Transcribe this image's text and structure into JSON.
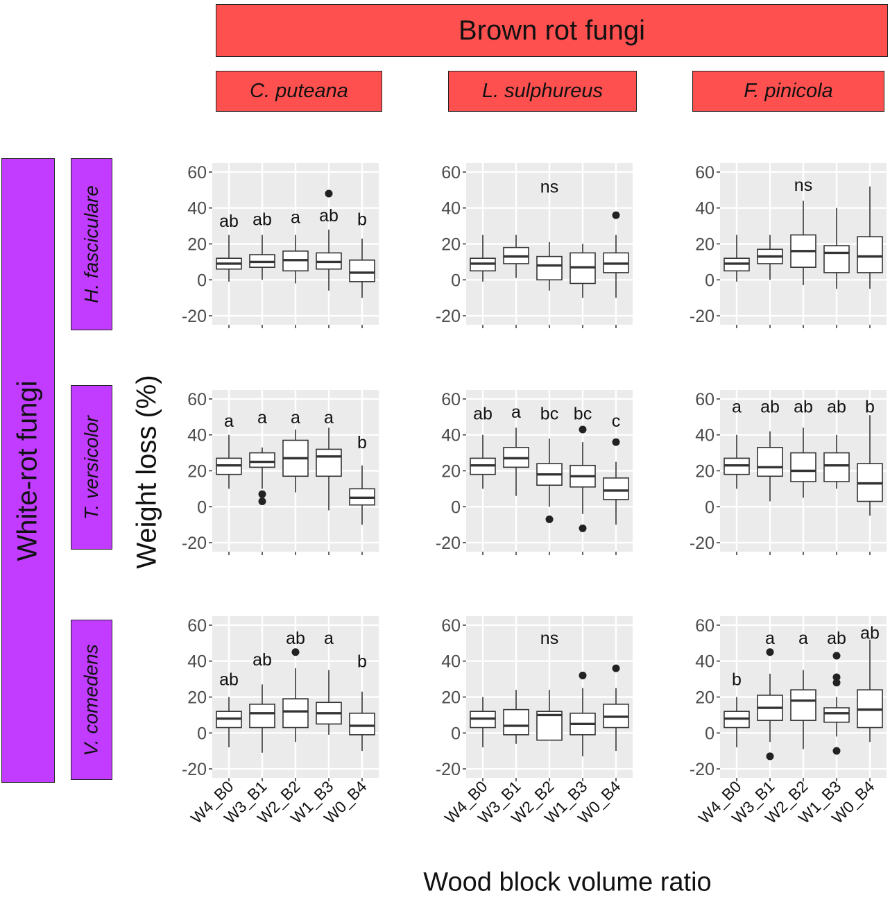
{
  "colors": {
    "brown_strip": "#ff5050",
    "white_strip": "#c13cff",
    "panel_bg": "#ebebeb",
    "grid": "#ffffff",
    "box_line": "#333333",
    "outlier": "#222222"
  },
  "strips": {
    "top_title": "Brown rot fungi",
    "columns": [
      "C. puteana",
      "L. sulphureus",
      "F. pinicola"
    ],
    "left_title": "White-rot fungi",
    "rows": [
      "H. fasciculare",
      "T. versicolor",
      "V. comedens"
    ]
  },
  "axis": {
    "ylabel": "Weight loss (%)",
    "xlabel": "Wood block volume ratio"
  },
  "chart_data": {
    "type": "boxplot",
    "layout": "3x3 facet grid",
    "categories": [
      "W4_B0",
      "W3_B1",
      "W2_B2",
      "W1_B3",
      "W0_B4"
    ],
    "y_ticks": [
      -20,
      0,
      20,
      40,
      60
    ],
    "ylim": [
      -25,
      65
    ],
    "grid": true,
    "panels": [
      {
        "row": "H. fasciculare",
        "col": "C. puteana",
        "boxes": [
          {
            "lo": -1,
            "q1": 6,
            "med": 9,
            "q3": 12,
            "hi": 25,
            "out": []
          },
          {
            "lo": 0,
            "q1": 7,
            "med": 10,
            "q3": 14,
            "hi": 25,
            "out": []
          },
          {
            "lo": -2,
            "q1": 5,
            "med": 11,
            "q3": 16,
            "hi": 25,
            "out": []
          },
          {
            "lo": -6,
            "q1": 6,
            "med": 10,
            "q3": 15,
            "hi": 28,
            "out": [
              48
            ]
          },
          {
            "lo": -10,
            "q1": -1,
            "med": 4,
            "q3": 11,
            "hi": 23,
            "out": []
          }
        ],
        "letters": [
          "ab",
          "ab",
          "a",
          "ab",
          "b"
        ],
        "letter_y": [
          33,
          34,
          35,
          36,
          34
        ]
      },
      {
        "row": "H. fasciculare",
        "col": "L. sulphureus",
        "boxes": [
          {
            "lo": -1,
            "q1": 5,
            "med": 9,
            "q3": 12,
            "hi": 25,
            "out": []
          },
          {
            "lo": 1,
            "q1": 9,
            "med": 13,
            "q3": 18,
            "hi": 25,
            "out": []
          },
          {
            "lo": -6,
            "q1": 0,
            "med": 8,
            "q3": 13,
            "hi": 21,
            "out": []
          },
          {
            "lo": -10,
            "q1": -2,
            "med": 7,
            "q3": 15,
            "hi": 20,
            "out": []
          },
          {
            "lo": -10,
            "q1": 4,
            "med": 9,
            "q3": 15,
            "hi": 25,
            "out": [
              36
            ]
          }
        ],
        "letters": [
          "ns"
        ],
        "letter_y": [
          52
        ]
      },
      {
        "row": "H. fasciculare",
        "col": "F. pinicola",
        "boxes": [
          {
            "lo": -1,
            "q1": 5,
            "med": 9,
            "q3": 12,
            "hi": 25,
            "out": []
          },
          {
            "lo": 0,
            "q1": 9,
            "med": 13,
            "q3": 17,
            "hi": 25,
            "out": []
          },
          {
            "lo": -3,
            "q1": 7,
            "med": 16,
            "q3": 25,
            "hi": 44,
            "out": []
          },
          {
            "lo": -5,
            "q1": 4,
            "med": 15,
            "q3": 19,
            "hi": 40,
            "out": []
          },
          {
            "lo": -5,
            "q1": 4,
            "med": 13,
            "q3": 24,
            "hi": 52,
            "out": []
          }
        ],
        "letters": [
          "ns"
        ],
        "letter_y": [
          53
        ]
      },
      {
        "row": "T. versicolor",
        "col": "C. puteana",
        "boxes": [
          {
            "lo": 10,
            "q1": 18,
            "med": 23,
            "q3": 27,
            "hi": 40,
            "out": []
          },
          {
            "lo": 10,
            "q1": 22,
            "med": 25,
            "q3": 30,
            "hi": 33,
            "out": [
              7,
              3
            ]
          },
          {
            "lo": 8,
            "q1": 17,
            "med": 27,
            "q3": 37,
            "hi": 43,
            "out": []
          },
          {
            "lo": -2,
            "q1": 17,
            "med": 28,
            "q3": 32,
            "hi": 44,
            "out": []
          },
          {
            "lo": -10,
            "q1": 1,
            "med": 5,
            "q3": 10,
            "hi": 23,
            "out": []
          }
        ],
        "letters": [
          "a",
          "a",
          "a",
          "a",
          "b"
        ],
        "letter_y": [
          48,
          50,
          50,
          50,
          36
        ]
      },
      {
        "row": "T. versicolor",
        "col": "L. sulphureus",
        "boxes": [
          {
            "lo": 10,
            "q1": 18,
            "med": 23,
            "q3": 27,
            "hi": 40,
            "out": []
          },
          {
            "lo": 6,
            "q1": 22,
            "med": 27,
            "q3": 33,
            "hi": 44,
            "out": []
          },
          {
            "lo": 0,
            "q1": 12,
            "med": 18,
            "q3": 24,
            "hi": 38,
            "out": [
              -7
            ]
          },
          {
            "lo": -4,
            "q1": 11,
            "med": 17,
            "q3": 23,
            "hi": 36,
            "out": [
              43,
              -12
            ]
          },
          {
            "lo": -10,
            "q1": 4,
            "med": 9,
            "q3": 16,
            "hi": 25,
            "out": [
              36
            ]
          }
        ],
        "letters": [
          "ab",
          "a",
          "bc",
          "bc",
          "c"
        ],
        "letter_y": [
          52,
          53,
          52,
          52,
          48
        ]
      },
      {
        "row": "T. versicolor",
        "col": "F. pinicola",
        "boxes": [
          {
            "lo": 10,
            "q1": 18,
            "med": 23,
            "q3": 27,
            "hi": 40,
            "out": []
          },
          {
            "lo": 3,
            "q1": 17,
            "med": 22,
            "q3": 33,
            "hi": 42,
            "out": []
          },
          {
            "lo": 5,
            "q1": 14,
            "med": 20,
            "q3": 30,
            "hi": 44,
            "out": []
          },
          {
            "lo": 10,
            "q1": 14,
            "med": 23,
            "q3": 30,
            "hi": 40,
            "out": []
          },
          {
            "lo": -5,
            "q1": 3,
            "med": 13,
            "q3": 24,
            "hi": 51,
            "out": []
          }
        ],
        "letters": [
          "a",
          "ab",
          "ab",
          "ab",
          "b"
        ],
        "letter_y": [
          56,
          56,
          56,
          56,
          56
        ]
      },
      {
        "row": "V. comedens",
        "col": "C. puteana",
        "boxes": [
          {
            "lo": -8,
            "q1": 3,
            "med": 8,
            "q3": 12,
            "hi": 20,
            "out": []
          },
          {
            "lo": -11,
            "q1": 3,
            "med": 11,
            "q3": 16,
            "hi": 27,
            "out": []
          },
          {
            "lo": -5,
            "q1": 3,
            "med": 12,
            "q3": 19,
            "hi": 36,
            "out": [
              45
            ]
          },
          {
            "lo": -1,
            "q1": 5,
            "med": 11,
            "q3": 17,
            "hi": 35,
            "out": []
          },
          {
            "lo": -10,
            "q1": -1,
            "med": 4,
            "q3": 11,
            "hi": 23,
            "out": []
          }
        ],
        "letters": [
          "ab",
          "ab",
          "ab",
          "a",
          "b"
        ],
        "letter_y": [
          30,
          41,
          53,
          53,
          40
        ]
      },
      {
        "row": "V. comedens",
        "col": "L. sulphureus",
        "boxes": [
          {
            "lo": -8,
            "q1": 3,
            "med": 8,
            "q3": 12,
            "hi": 20,
            "out": []
          },
          {
            "lo": -6,
            "q1": -1,
            "med": 4,
            "q3": 13,
            "hi": 24,
            "out": []
          },
          {
            "lo": -4,
            "q1": -4,
            "med": 10,
            "q3": 12,
            "hi": 24,
            "out": []
          },
          {
            "lo": -13,
            "q1": -1,
            "med": 5,
            "q3": 11,
            "hi": 25,
            "out": [
              32
            ]
          },
          {
            "lo": -10,
            "q1": 3,
            "med": 9,
            "q3": 16,
            "hi": 25,
            "out": [
              36
            ]
          }
        ],
        "letters": [
          "ns"
        ],
        "letter_y": [
          53
        ]
      },
      {
        "row": "V. comedens",
        "col": "F. pinicola",
        "boxes": [
          {
            "lo": -8,
            "q1": 3,
            "med": 8,
            "q3": 12,
            "hi": 20,
            "out": []
          },
          {
            "lo": -5,
            "q1": 7,
            "med": 14,
            "q3": 21,
            "hi": 33,
            "out": [
              45,
              -13
            ]
          },
          {
            "lo": -9,
            "q1": 7,
            "med": 18,
            "q3": 24,
            "hi": 35,
            "out": []
          },
          {
            "lo": -2,
            "q1": 6,
            "med": 11,
            "q3": 14,
            "hi": 20,
            "out": [
              43,
              31,
              28,
              -10
            ]
          },
          {
            "lo": -5,
            "q1": 3,
            "med": 13,
            "q3": 24,
            "hi": 52,
            "out": []
          }
        ],
        "letters": [
          "b",
          "a",
          "a",
          "ab",
          "ab"
        ],
        "letter_y": [
          30,
          53,
          53,
          53,
          56
        ]
      }
    ]
  }
}
